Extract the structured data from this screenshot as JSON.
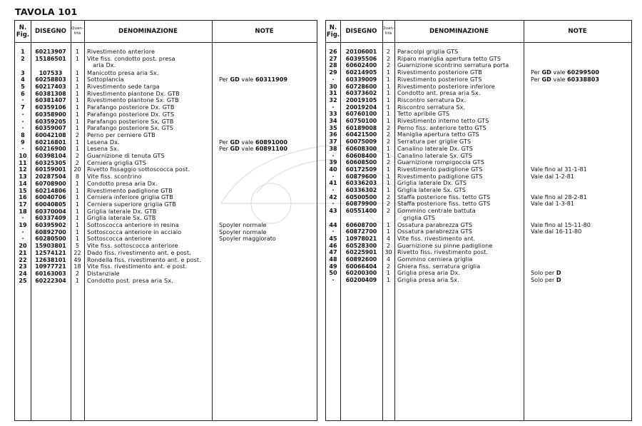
{
  "title": "TAVOLA 101",
  "headers": {
    "fig": "N. Fig.",
    "disegno": "DISEGNO",
    "quantita": "Quan- tità",
    "denominazione": "DENOMINAZIONE",
    "note": "NOTE"
  },
  "left_rows": [
    {
      "fig": "1",
      "dis": "60213907",
      "qty": "1",
      "den": "Rivestimento anteriore"
    },
    {
      "fig": "2",
      "dis": "15186501",
      "qty": "1",
      "den": "Vite fiss. condotto post. presa"
    },
    {
      "den": "   aria Dx."
    },
    {
      "fig": "3",
      "dis": "107533",
      "qty": "1",
      "den": "Manicotto presa aria Sx."
    },
    {
      "fig": "4",
      "dis": "60258803",
      "qty": "1",
      "den": "Sottoplancia",
      "note": {
        "pre": "Per ",
        "b1": "GD",
        "mid": " vale ",
        "b2": "60311909"
      }
    },
    {
      "fig": "5",
      "dis": "60217403",
      "qty": "1",
      "den": "Rivestimento sede targa"
    },
    {
      "fig": "6",
      "dis": "60381308",
      "qty": "1",
      "den": "Rivestimento piantone Dx. GTB"
    },
    {
      "fig": "-",
      "dis": "60381407",
      "qty": "1",
      "den": "Rivestimento piantone Sx. GTB"
    },
    {
      "fig": "7",
      "dis": "60359106",
      "qty": "1",
      "den": "Parafango posteriore Dx. GTB"
    },
    {
      "fig": "-",
      "dis": "60358900",
      "qty": "1",
      "den": "Parafango posteriore Dx. GTS"
    },
    {
      "fig": "-",
      "dis": "60359205",
      "qty": "1",
      "den": "Parafango posteriore Sx. GTB"
    },
    {
      "fig": "-",
      "dis": "60359007",
      "qty": "1",
      "den": "Parafango posteriore Sx. GTS"
    },
    {
      "fig": "8",
      "dis": "60042108",
      "qty": "2",
      "den": "Perno per cerniere GTB"
    },
    {
      "fig": "9",
      "dis": "60216801",
      "qty": "1",
      "den": "Lesena Dx.",
      "note": {
        "pre": "Per ",
        "b1": "GD",
        "mid": " vale ",
        "b2": "60891000"
      }
    },
    {
      "fig": "-",
      "dis": "60216900",
      "qty": "1",
      "den": "Lesena Sx.",
      "note": {
        "pre": "Per ",
        "b1": "GD",
        "mid": " vale ",
        "b2": "60891100"
      }
    },
    {
      "fig": "10",
      "dis": "60398104",
      "qty": "2",
      "den": "Guarnizione di tenuta GTS"
    },
    {
      "fig": "11",
      "dis": "60325305",
      "qty": "2",
      "den": "Cerniera griglia GTS"
    },
    {
      "fig": "12",
      "dis": "60159001",
      "qty": "20",
      "den": "Rivetto fissaggio sottoscocca post."
    },
    {
      "fig": "13",
      "dis": "20287504",
      "qty": "8",
      "den": "Vite fiss. scontrino"
    },
    {
      "fig": "14",
      "dis": "60708900",
      "qty": "1",
      "den": "Condotto presa aria Dx."
    },
    {
      "fig": "15",
      "dis": "60214806",
      "qty": "1",
      "den": "Rivestimento padiglione GTB"
    },
    {
      "fig": "16",
      "dis": "60040706",
      "qty": "1",
      "den": "Cerniera inferiore griglia GTB"
    },
    {
      "fig": "17",
      "dis": "60040805",
      "qty": "1",
      "den": "Cerniera superiore griglia GTB"
    },
    {
      "fig": "18",
      "dis": "60370004",
      "qty": "1",
      "den": "Griglia laterale Dx. GTB"
    },
    {
      "fig": "-",
      "dis": "60337409",
      "qty": "1",
      "den": "Griglia laterale Sx. GTB"
    },
    {
      "fig": "19",
      "dis": "60395902",
      "qty": "1",
      "den": "Sottoscocca anteriore in resina",
      "note": {
        "pre": "Spoyler normale"
      }
    },
    {
      "fig": "-",
      "dis": "60892700",
      "qty": "1",
      "den": "Sottoscocca anteriore in acciaio",
      "note": {
        "pre": "Spoyler normale"
      }
    },
    {
      "fig": "-",
      "dis": "60280500",
      "qty": "1",
      "den": "Sottoscocca anteriore",
      "note": {
        "pre": "Spoyler maggiorato"
      }
    },
    {
      "fig": "20",
      "dis": "15903801",
      "qty": "5",
      "den": "Vite fiss. sottoscocca anteriore"
    },
    {
      "fig": "21",
      "dis": "12574121",
      "qty": "22",
      "den": "Dado fiss. rivestimento ant. e post."
    },
    {
      "fig": "22",
      "dis": "12638101",
      "qty": "49",
      "den": "Rondella fiss. rivestimento ant. e post."
    },
    {
      "fig": "23",
      "dis": "10977721",
      "qty": "18",
      "den": "Vite fiss. rivestimento ant. e post."
    },
    {
      "fig": "24",
      "dis": "60163003",
      "qty": "2",
      "den": "Distanziale"
    },
    {
      "fig": "25",
      "dis": "60222304",
      "qty": "1",
      "den": "Condotto post. presa aria Sx."
    }
  ],
  "right_rows": [
    {
      "fig": "26",
      "dis": "20106001",
      "qty": "2",
      "den": "Paracolpi griglia GTS"
    },
    {
      "fig": "27",
      "dis": "60395506",
      "qty": "2",
      "den": "Riparo maniglia apertura tetto GTS"
    },
    {
      "fig": "28",
      "dis": "60602400",
      "qty": "2",
      "den": "Guarnizione scontrino serratura porta"
    },
    {
      "fig": "29",
      "dis": "60214905",
      "qty": "1",
      "den": "Rivestimento posteriore GTB",
      "note": {
        "pre": "Per ",
        "b1": "GD",
        "mid": " vale ",
        "b2": "60299500"
      }
    },
    {
      "fig": "-",
      "dis": "60339009",
      "qty": "1",
      "den": "Rivestimento posteriore GTS",
      "note": {
        "pre": "Per ",
        "b1": "GD",
        "mid": " vale ",
        "b2": "60338803"
      }
    },
    {
      "fig": "30",
      "dis": "60728600",
      "qty": "1",
      "den": "Rivestimento posteriore inferiore"
    },
    {
      "fig": "31",
      "dis": "60373602",
      "qty": "1",
      "den": "Condotto ant. presa aria Sx."
    },
    {
      "fig": "32",
      "dis": "20019105",
      "qty": "1",
      "den": "Riscontro serratura Dx."
    },
    {
      "fig": "-",
      "dis": "20019204",
      "qty": "1",
      "den": "Riscontro serratura Sx."
    },
    {
      "fig": "33",
      "dis": "60760100",
      "qty": "1",
      "den": "Tetto apribile GTS"
    },
    {
      "fig": "34",
      "dis": "60750100",
      "qty": "1",
      "den": "Rivestimento interno tetto GTS"
    },
    {
      "fig": "35",
      "dis": "60189008",
      "qty": "2",
      "den": "Perno fiss. anteriore tetto GTS"
    },
    {
      "fig": "36",
      "dis": "60421500",
      "qty": "2",
      "den": "Maniglia apertura tetto GTS"
    },
    {
      "fig": "37",
      "dis": "60075009",
      "qty": "2",
      "den": "Serratura per griglie GTS"
    },
    {
      "fig": "38",
      "dis": "60608300",
      "qty": "1",
      "den": "Canalino laterale Dx. GTS"
    },
    {
      "fig": "-",
      "dis": "60608400",
      "qty": "1",
      "den": "Canalino laterale Sx. GTS"
    },
    {
      "fig": "39",
      "dis": "60608500",
      "qty": "2",
      "den": "Guarnizione rompigoccia GTS"
    },
    {
      "fig": "40",
      "dis": "60172509",
      "qty": "1",
      "den": "Rivestimento padiglione GTS",
      "note": {
        "pre": "Vale fino al 31-1-81"
      }
    },
    {
      "fig": "-",
      "dis": "60879600",
      "qty": "1",
      "den": "Rivestimento padiglione GTS",
      "note": {
        "pre": "Vale dal 1-2-81"
      }
    },
    {
      "fig": "41",
      "dis": "60336203",
      "qty": "1",
      "den": "Griglia laterale Dx. GTS"
    },
    {
      "fig": "-",
      "dis": "60336302",
      "qty": "1",
      "den": "Griglia laterale Sx. GTS"
    },
    {
      "fig": "42",
      "dis": "60500500",
      "qty": "2",
      "den": "Staffa posteriore fiss. tetto GTS",
      "note": {
        "pre": "Vale fino al 28-2-81"
      }
    },
    {
      "fig": "-",
      "dis": "60879900",
      "qty": "2",
      "den": "Staffa posteriore fiss. tetto GTS",
      "note": {
        "pre": "Vale dal 1-3-81"
      }
    },
    {
      "fig": "43",
      "dis": "60551400",
      "qty": "2",
      "den": "Gommino centrale battuta"
    },
    {
      "den": "   griglia GTS"
    },
    {
      "fig": "44",
      "dis": "60608700",
      "qty": "1",
      "den": "Ossatura parabrezza GTS",
      "note": {
        "pre": "Vale fino al 15-11-80"
      }
    },
    {
      "fig": "-",
      "dis": "60872700",
      "qty": "1",
      "den": "Ossatura parabrezza GTS",
      "note": {
        "pre": "Vale dal 16-11-80"
      }
    },
    {
      "fig": "45",
      "dis": "10978021",
      "qty": "4",
      "den": "Vite fiss. rivestimento ant."
    },
    {
      "fig": "46",
      "dis": "60528300",
      "qty": "2",
      "den": "Guarnizione su pinne padiglione"
    },
    {
      "fig": "47",
      "dis": "60225901",
      "qty": "30",
      "den": "Rivetto fiss. rivestimento post."
    },
    {
      "fig": "48",
      "dis": "60892600",
      "qty": "4",
      "den": "Gommino cerniera griglia"
    },
    {
      "fig": "49",
      "dis": "60066404",
      "qty": "2",
      "den": "Ghiera fiss. serratura griglia"
    },
    {
      "fig": "50",
      "dis": "60200300",
      "qty": "1",
      "den": "Griglia presa aria Dx.",
      "note": {
        "pre": "Solo per ",
        "b1": "D"
      }
    },
    {
      "fig": "-",
      "dis": "60200409",
      "qty": "1",
      "den": "Griglia presa aria Sx.",
      "note": {
        "pre": "Solo per ",
        "b1": "D"
      }
    }
  ]
}
